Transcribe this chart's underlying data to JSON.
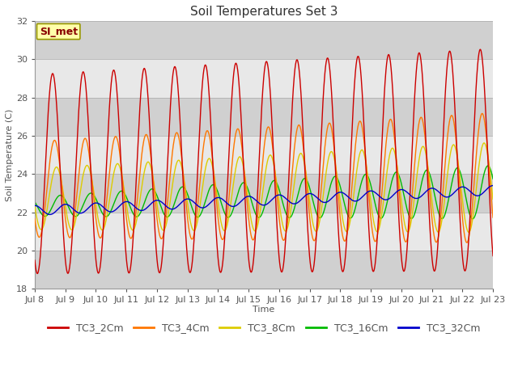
{
  "title": "Soil Temperatures Set 3",
  "xlabel": "Time",
  "ylabel": "Soil Temperature (C)",
  "ylim": [
    18,
    32
  ],
  "n_days": 15,
  "x_tick_labels": [
    "Jul 8",
    "Jul 9",
    "Jul 10",
    "Jul 11",
    "Jul 12",
    "Jul 13",
    "Jul 14",
    "Jul 15",
    "Jul 16",
    "Jul 17",
    "Jul 18",
    "Jul 19",
    "Jul 20",
    "Jul 21",
    "Jul 22",
    "Jul 23"
  ],
  "series_colors": [
    "#cc0000",
    "#ff7700",
    "#ddcc00",
    "#00bb00",
    "#0000cc"
  ],
  "series_names": [
    "TC3_2Cm",
    "TC3_4Cm",
    "TC3_8Cm",
    "TC3_16Cm",
    "TC3_32Cm"
  ],
  "annotation_text": "SI_met",
  "annotation_bg": "#ffffaa",
  "annotation_border": "#999900",
  "annotation_text_color": "#880000",
  "fig_bg": "#ffffff",
  "plot_bg": "#e8e8e8",
  "band_color_dark": "#d0d0d0",
  "band_color_light": "#e8e8e8",
  "title_fontsize": 11,
  "axis_fontsize": 8,
  "tick_fontsize": 8,
  "legend_fontsize": 9
}
